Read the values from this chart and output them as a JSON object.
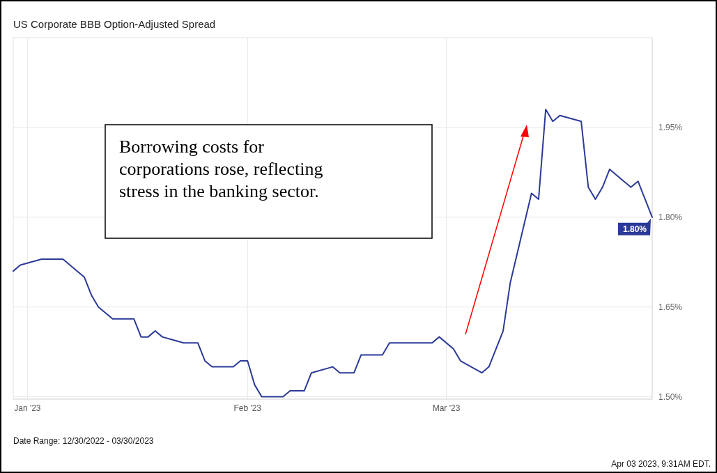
{
  "chart_data": {
    "type": "line",
    "title": "US Corporate BBB Option-Adjusted Spread",
    "x": [
      "2022-12-30",
      "2022-12-31",
      "2023-01-03",
      "2023-01-06",
      "2023-01-09",
      "2023-01-10",
      "2023-01-11",
      "2023-01-13",
      "2023-01-16",
      "2023-01-17",
      "2023-01-18",
      "2023-01-19",
      "2023-01-20",
      "2023-01-23",
      "2023-01-25",
      "2023-01-26",
      "2023-01-27",
      "2023-01-30",
      "2023-01-31",
      "2023-02-01",
      "2023-02-02",
      "2023-02-03",
      "2023-02-06",
      "2023-02-07",
      "2023-02-09",
      "2023-02-10",
      "2023-02-13",
      "2023-02-14",
      "2023-02-16",
      "2023-02-17",
      "2023-02-20",
      "2023-02-21",
      "2023-02-27",
      "2023-02-28",
      "2023-03-02",
      "2023-03-03",
      "2023-03-06",
      "2023-03-07",
      "2023-03-09",
      "2023-03-10",
      "2023-03-13",
      "2023-03-14",
      "2023-03-15",
      "2023-03-16",
      "2023-03-17",
      "2023-03-20",
      "2023-03-21",
      "2023-03-22",
      "2023-03-23",
      "2023-03-24",
      "2023-03-27",
      "2023-03-28",
      "2023-03-30"
    ],
    "series": [
      {
        "color": "#2b3a97",
        "values": [
          1.71,
          1.72,
          1.73,
          1.73,
          1.7,
          1.67,
          1.65,
          1.63,
          1.63,
          1.6,
          1.6,
          1.61,
          1.6,
          1.59,
          1.59,
          1.56,
          1.55,
          1.55,
          1.56,
          1.56,
          1.52,
          1.5,
          1.5,
          1.51,
          1.51,
          1.54,
          1.55,
          1.54,
          1.54,
          1.57,
          1.57,
          1.59,
          1.59,
          1.6,
          1.58,
          1.56,
          1.54,
          1.55,
          1.61,
          1.69,
          1.84,
          1.83,
          1.98,
          1.96,
          1.97,
          1.96,
          1.85,
          1.83,
          1.85,
          1.88,
          1.85,
          1.86,
          1.8
        ],
        "value_labels": [
          null,
          null,
          null,
          null,
          null,
          null,
          null,
          null,
          null,
          null,
          null,
          null,
          null,
          null,
          null,
          null,
          null,
          null,
          null,
          null,
          null,
          null,
          null,
          null,
          null,
          null,
          null,
          null,
          null,
          null,
          null,
          null,
          null,
          null,
          null,
          null,
          null,
          null,
          null,
          null,
          null,
          null,
          null,
          null,
          null,
          null,
          null,
          null,
          null,
          null,
          null,
          null,
          "1.80%"
        ]
      }
    ],
    "xlim": [
      "2022-12-30",
      "2023-03-30"
    ],
    "xticks": [
      {
        "value": "2023-01-01",
        "label": "Jan '23"
      },
      {
        "value": "2023-02-01",
        "label": "Feb '23"
      },
      {
        "value": "2023-03-01",
        "label": "Mar '23"
      }
    ],
    "ylim": [
      1.496,
      2.1
    ],
    "yticks": [
      {
        "value": 1.5,
        "label": "1.50%"
      },
      {
        "value": 1.65,
        "label": "1.65%"
      },
      {
        "value": 1.8,
        "label": "1.80%"
      },
      {
        "value": 1.95,
        "label": "1.95%"
      }
    ],
    "grid": true,
    "marker": "none",
    "line_style": "solid",
    "annotations": [
      "Borrowing costs for corporations rose, reflecting stress in the banking sector.",
      "Date Range: 12/30/2022 - 03/30/2023",
      "Apr 03 2023, 9:31AM EDT."
    ]
  }
}
